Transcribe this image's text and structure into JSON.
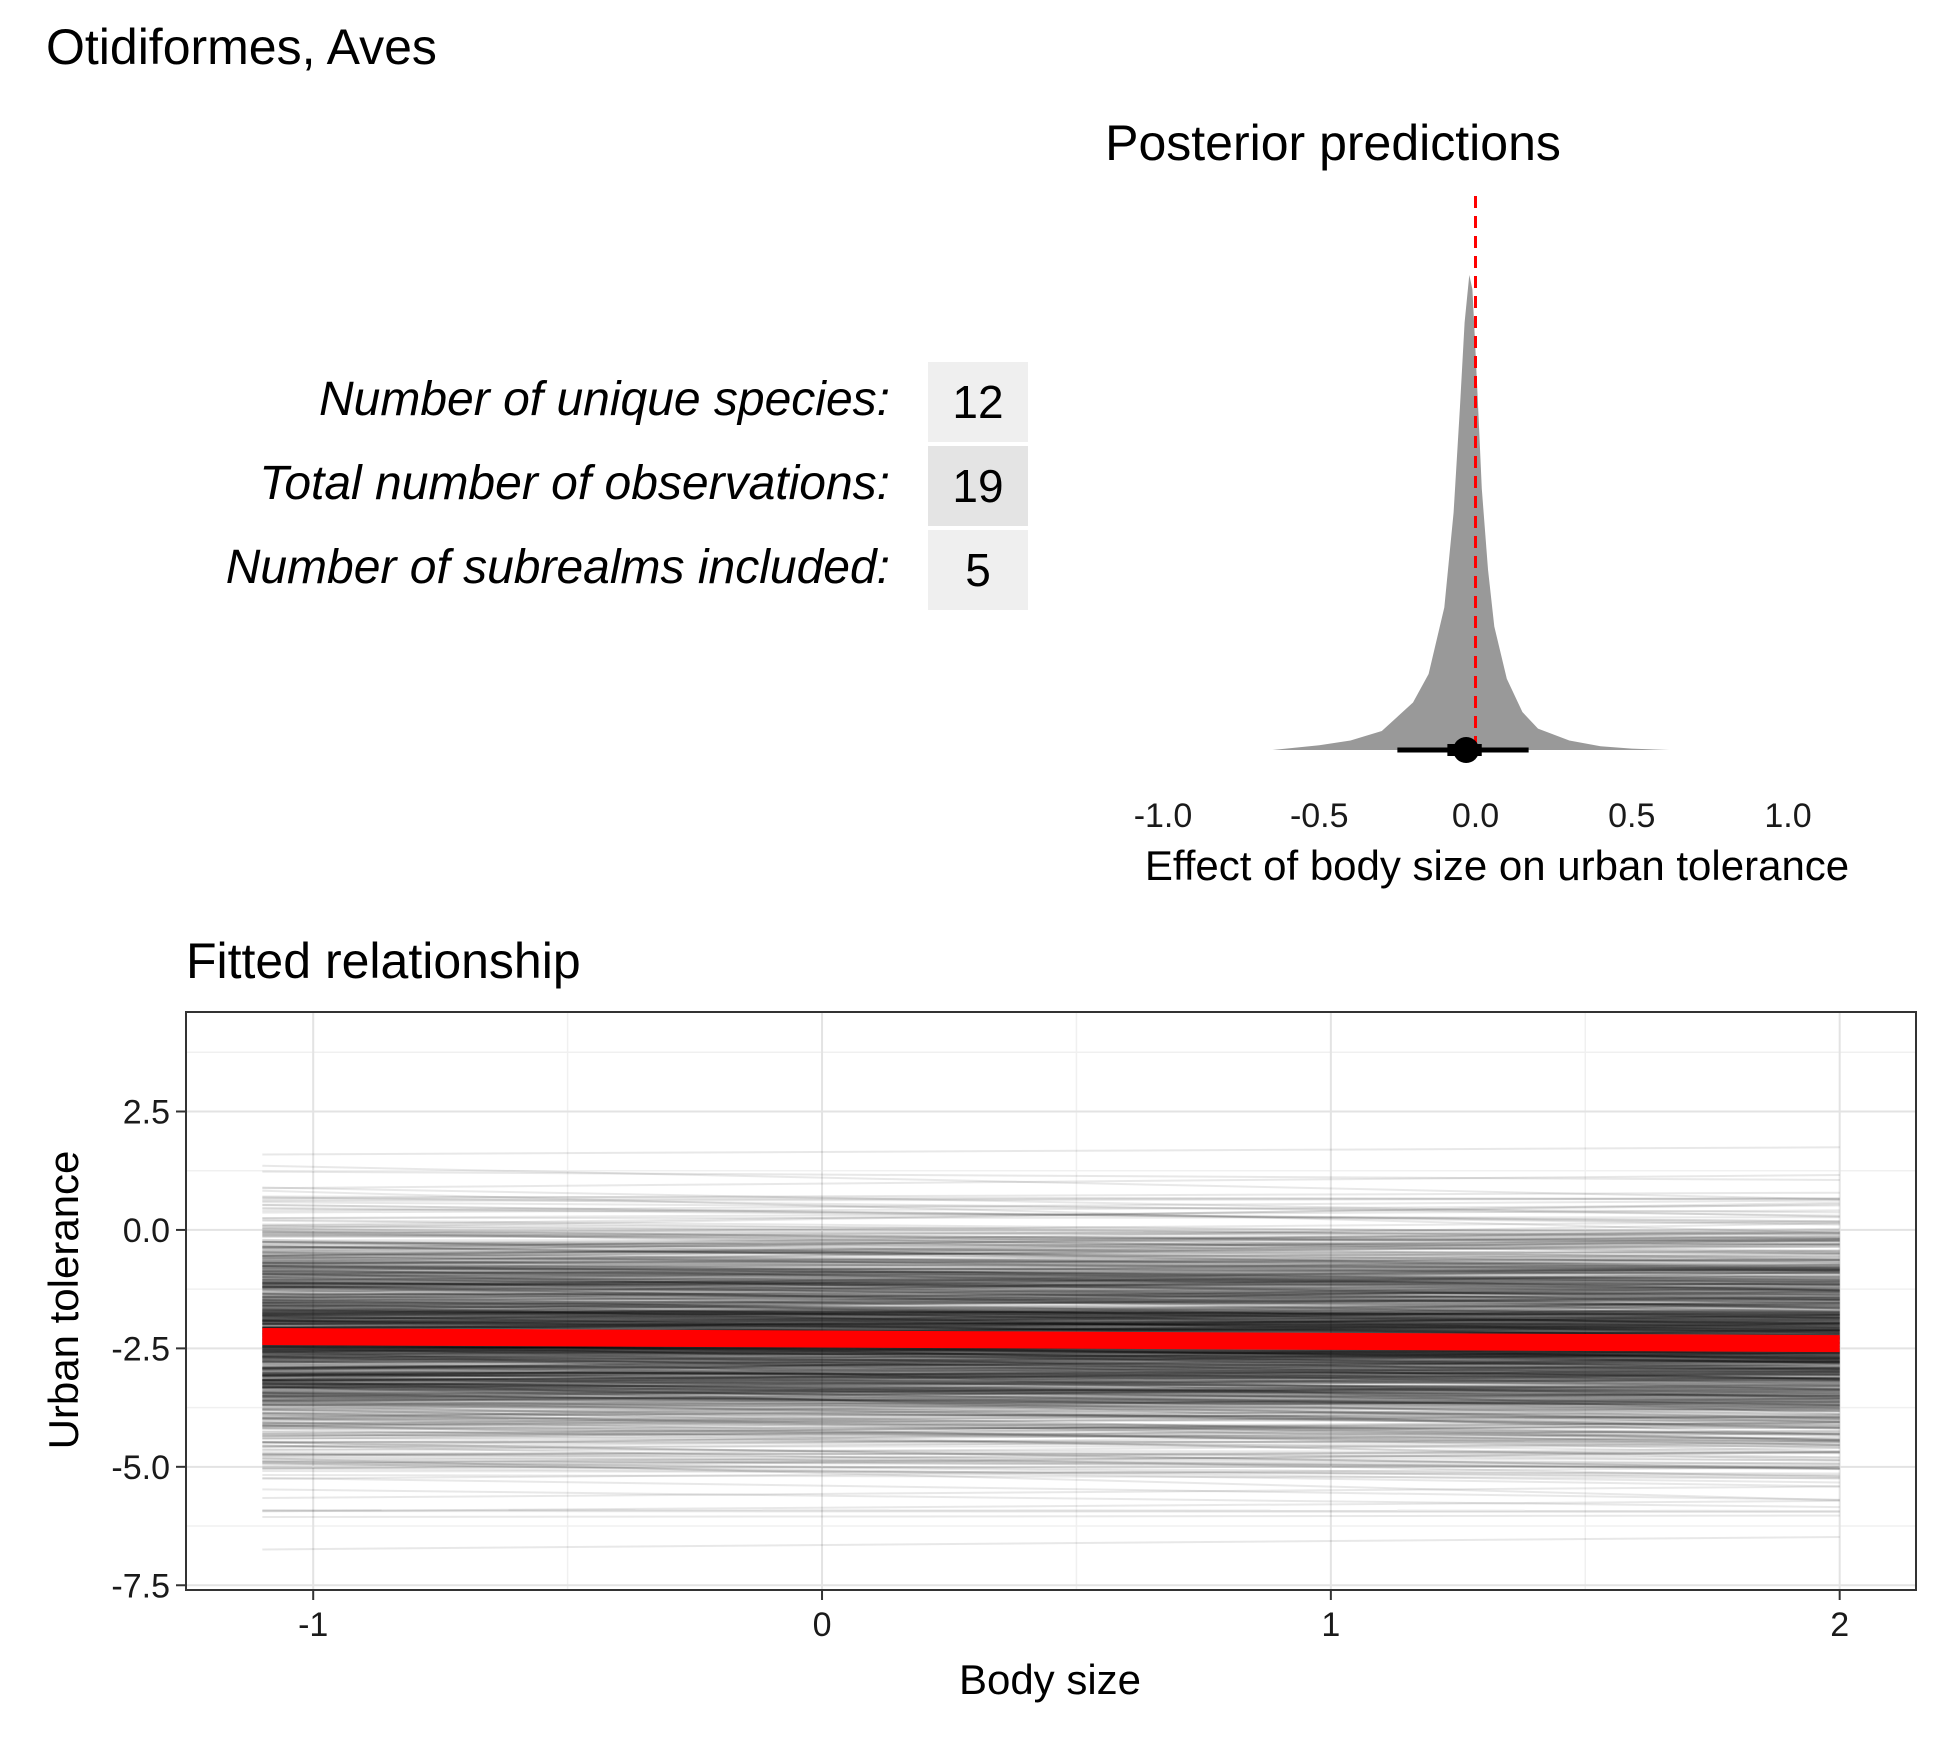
{
  "figure_title": "Otidiformes, Aves",
  "stats": [
    {
      "label": "Number of unique species:",
      "value": "12"
    },
    {
      "label": "Total number of observations:",
      "value": "19"
    },
    {
      "label": "Number of subrealms included:",
      "value": "5"
    }
  ],
  "chart_data": [
    {
      "type": "area",
      "title": "Posterior predictions",
      "xlabel": "Effect of body size on urban tolerance",
      "ylabel": "",
      "xlim": [
        -1.0,
        1.0
      ],
      "x_ticks": [
        "-1.0",
        "-0.5",
        "0.0",
        "0.5",
        "1.0"
      ],
      "grid": false,
      "density": {
        "x": [
          -0.65,
          -0.5,
          -0.4,
          -0.3,
          -0.2,
          -0.15,
          -0.1,
          -0.07,
          -0.05,
          -0.035,
          -0.02,
          -0.01,
          0.0,
          0.01,
          0.02,
          0.04,
          0.06,
          0.1,
          0.15,
          0.2,
          0.3,
          0.4,
          0.5,
          0.62
        ],
        "y": [
          0.0,
          0.01,
          0.02,
          0.04,
          0.1,
          0.16,
          0.3,
          0.5,
          0.72,
          0.9,
          1.0,
          0.97,
          0.84,
          0.7,
          0.55,
          0.38,
          0.26,
          0.15,
          0.08,
          0.045,
          0.02,
          0.008,
          0.003,
          0.0
        ]
      },
      "point_estimate": -0.03,
      "interval_inner": [
        -0.09,
        0.02
      ],
      "interval_outer": [
        -0.25,
        0.17
      ],
      "reference_line": 0.0,
      "colors": {
        "density": "#999999",
        "reference": "#ff0000",
        "interval": "#000000"
      }
    },
    {
      "type": "line",
      "title": "Fitted relationship",
      "xlabel": "Body size",
      "ylabel": "Urban tolerance",
      "xlim": [
        -1.25,
        2.15
      ],
      "ylim": [
        -7.6,
        4.6
      ],
      "x_ticks": [
        "-1",
        "0",
        "1",
        "2"
      ],
      "y_ticks": [
        "2.5",
        "0.0",
        "-2.5",
        "-5.0",
        "-7.5"
      ],
      "grid": true,
      "x_range": [
        -1.1,
        2.0
      ],
      "mean_line": {
        "x": [
          -1.1,
          2.0
        ],
        "y": [
          -2.25,
          -2.4
        ],
        "color": "#ff0000"
      },
      "posterior_draws": {
        "count": 1000,
        "intercept_mean": -2.3,
        "intercept_sd": 1.25,
        "slope_mean": -0.03,
        "slope_sd": 0.1,
        "color": "#000000"
      }
    }
  ]
}
